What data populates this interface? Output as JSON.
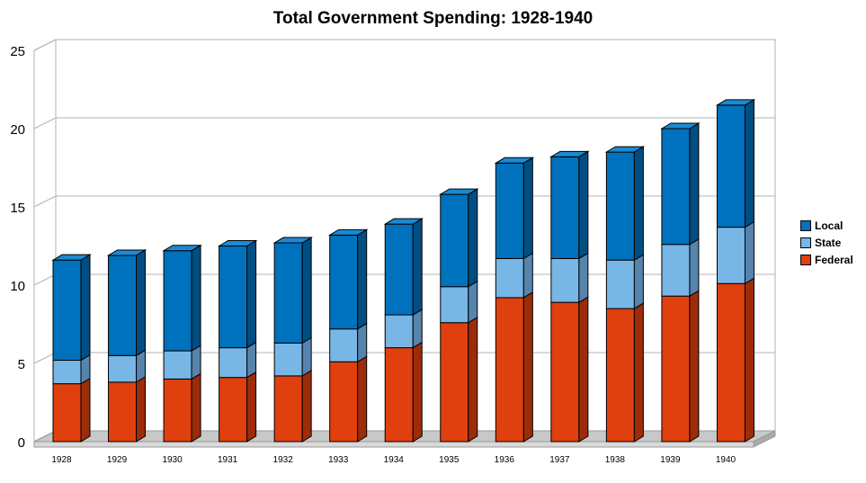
{
  "chart_data": {
    "type": "bar",
    "stacked": true,
    "three_d": true,
    "title": "Total Government Spending: 1928-1940",
    "xlabel": "",
    "ylabel": "",
    "ylim": [
      0,
      25
    ],
    "yticks": [
      "0",
      "5",
      "10",
      "15",
      "20",
      "25"
    ],
    "categories": [
      "1928",
      "1929",
      "1930",
      "1931",
      "1932",
      "1933",
      "1934",
      "1935",
      "1936",
      "1937",
      "1938",
      "1939",
      "1940"
    ],
    "series": [
      {
        "name": "Federal",
        "color": "#E0400E",
        "values": [
          3.7,
          3.8,
          4.0,
          4.1,
          4.2,
          5.1,
          6.0,
          7.6,
          9.2,
          8.9,
          8.5,
          9.3,
          10.1
        ]
      },
      {
        "name": "State",
        "color": "#78B6E6",
        "values": [
          1.5,
          1.7,
          1.8,
          1.9,
          2.1,
          2.1,
          2.1,
          2.3,
          2.5,
          2.8,
          3.1,
          3.3,
          3.6
        ]
      },
      {
        "name": "Local",
        "color": "#0071BC",
        "values": [
          6.4,
          6.4,
          6.4,
          6.5,
          6.4,
          6.0,
          5.8,
          5.9,
          6.1,
          6.5,
          6.9,
          7.4,
          7.8
        ]
      }
    ],
    "legend_order": [
      "Local",
      "State",
      "Federal"
    ],
    "legend_position": "right",
    "grid": true
  }
}
